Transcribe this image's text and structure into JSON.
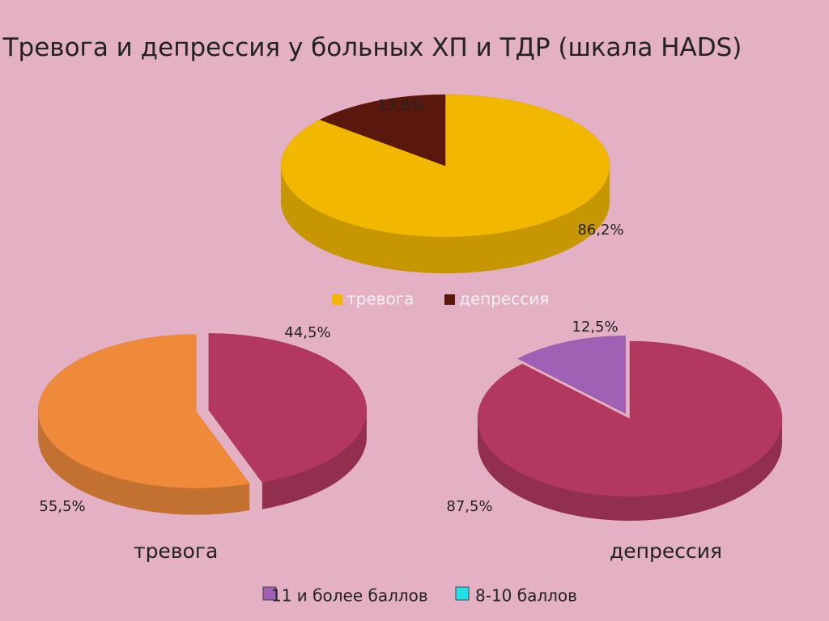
{
  "chart_data": [
    {
      "type": "pie",
      "title": "Тревога и депрессия у больных ХП и ТДР (шкала HADS)",
      "categories": [
        "тревога",
        "депрессия"
      ],
      "values": [
        86.2,
        13.8
      ],
      "value_labels": [
        "86,2%",
        "13,8%"
      ],
      "colors": [
        "#f2b800",
        "#5a180c"
      ]
    },
    {
      "type": "pie",
      "title": "тревога",
      "values": [
        55.5,
        44.5
      ],
      "value_labels": [
        "55,5%",
        "44,5%"
      ],
      "colors": [
        "#ee8a3a",
        "#b2385f"
      ]
    },
    {
      "type": "pie",
      "title": "депрессия",
      "values": [
        87.5,
        12.5
      ],
      "value_labels": [
        "87,5%",
        "12,5%"
      ],
      "colors": [
        "#b2385f",
        "#a060b4"
      ]
    }
  ],
  "legend": {
    "items": [
      {
        "name": "11 и более баллов",
        "color": "#a060b4"
      },
      {
        "name": "8-10 баллов",
        "color": "#22e0e8"
      }
    ]
  }
}
